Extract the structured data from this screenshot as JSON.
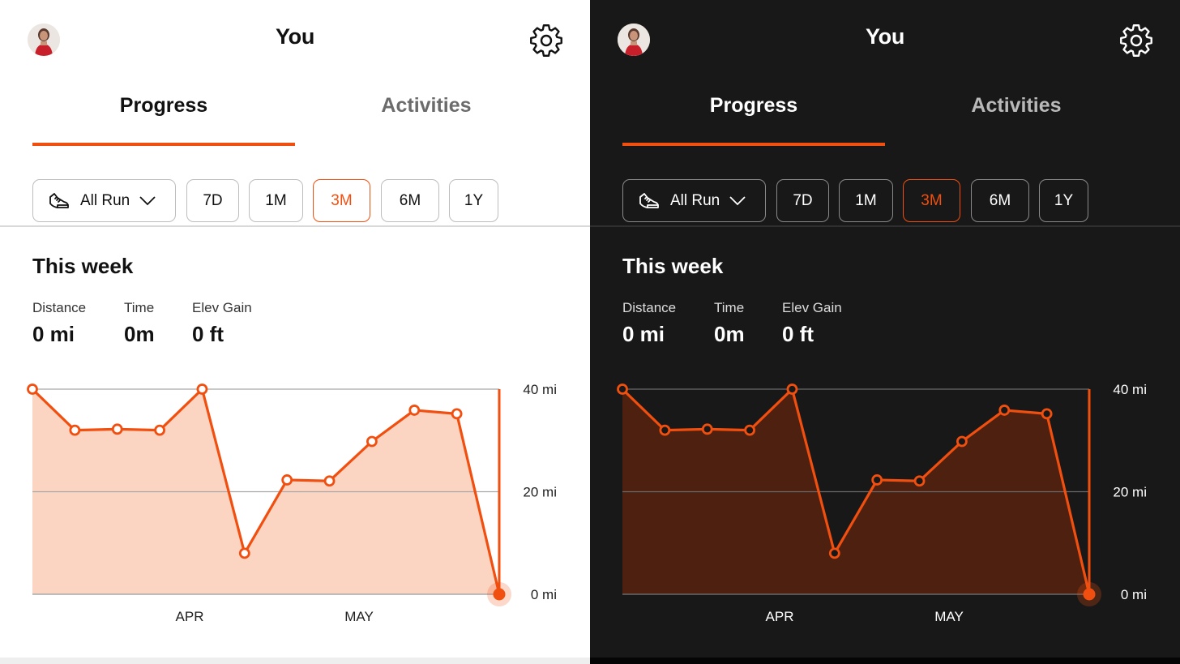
{
  "header": {
    "title": "You"
  },
  "tabs": [
    {
      "label": "Progress",
      "active": true
    },
    {
      "label": "Activities",
      "active": false
    }
  ],
  "filters": {
    "sport_label": "All Run",
    "sport_icon": "shoe-icon",
    "ranges": [
      "7D",
      "1M",
      "3M",
      "6M",
      "1Y"
    ],
    "selected_range": "3M"
  },
  "this_week": {
    "title": "This week",
    "stats": [
      {
        "label": "Distance",
        "value": "0 mi"
      },
      {
        "label": "Time",
        "value": "0m"
      },
      {
        "label": "Elev Gain",
        "value": "0 ft"
      }
    ]
  },
  "colors": {
    "accent": "#f14f0f",
    "light_fill": "#fcd4c2",
    "dark_fill": "#4d200f",
    "light_bg": "#ffffff",
    "dark_bg": "#181818"
  },
  "chart_data": {
    "type": "area",
    "series": [
      {
        "values": [
          40,
          32,
          32.2,
          32,
          40,
          8,
          22.3,
          22.1,
          29.8,
          35.9,
          35.2,
          0
        ]
      }
    ],
    "x_ticks": [
      "APR",
      "MAY"
    ],
    "y_ticks": [
      "40 mi",
      "20 mi",
      "0 mi"
    ],
    "ylim": [
      0,
      40
    ],
    "grid": true,
    "y_axis_position": "right"
  }
}
